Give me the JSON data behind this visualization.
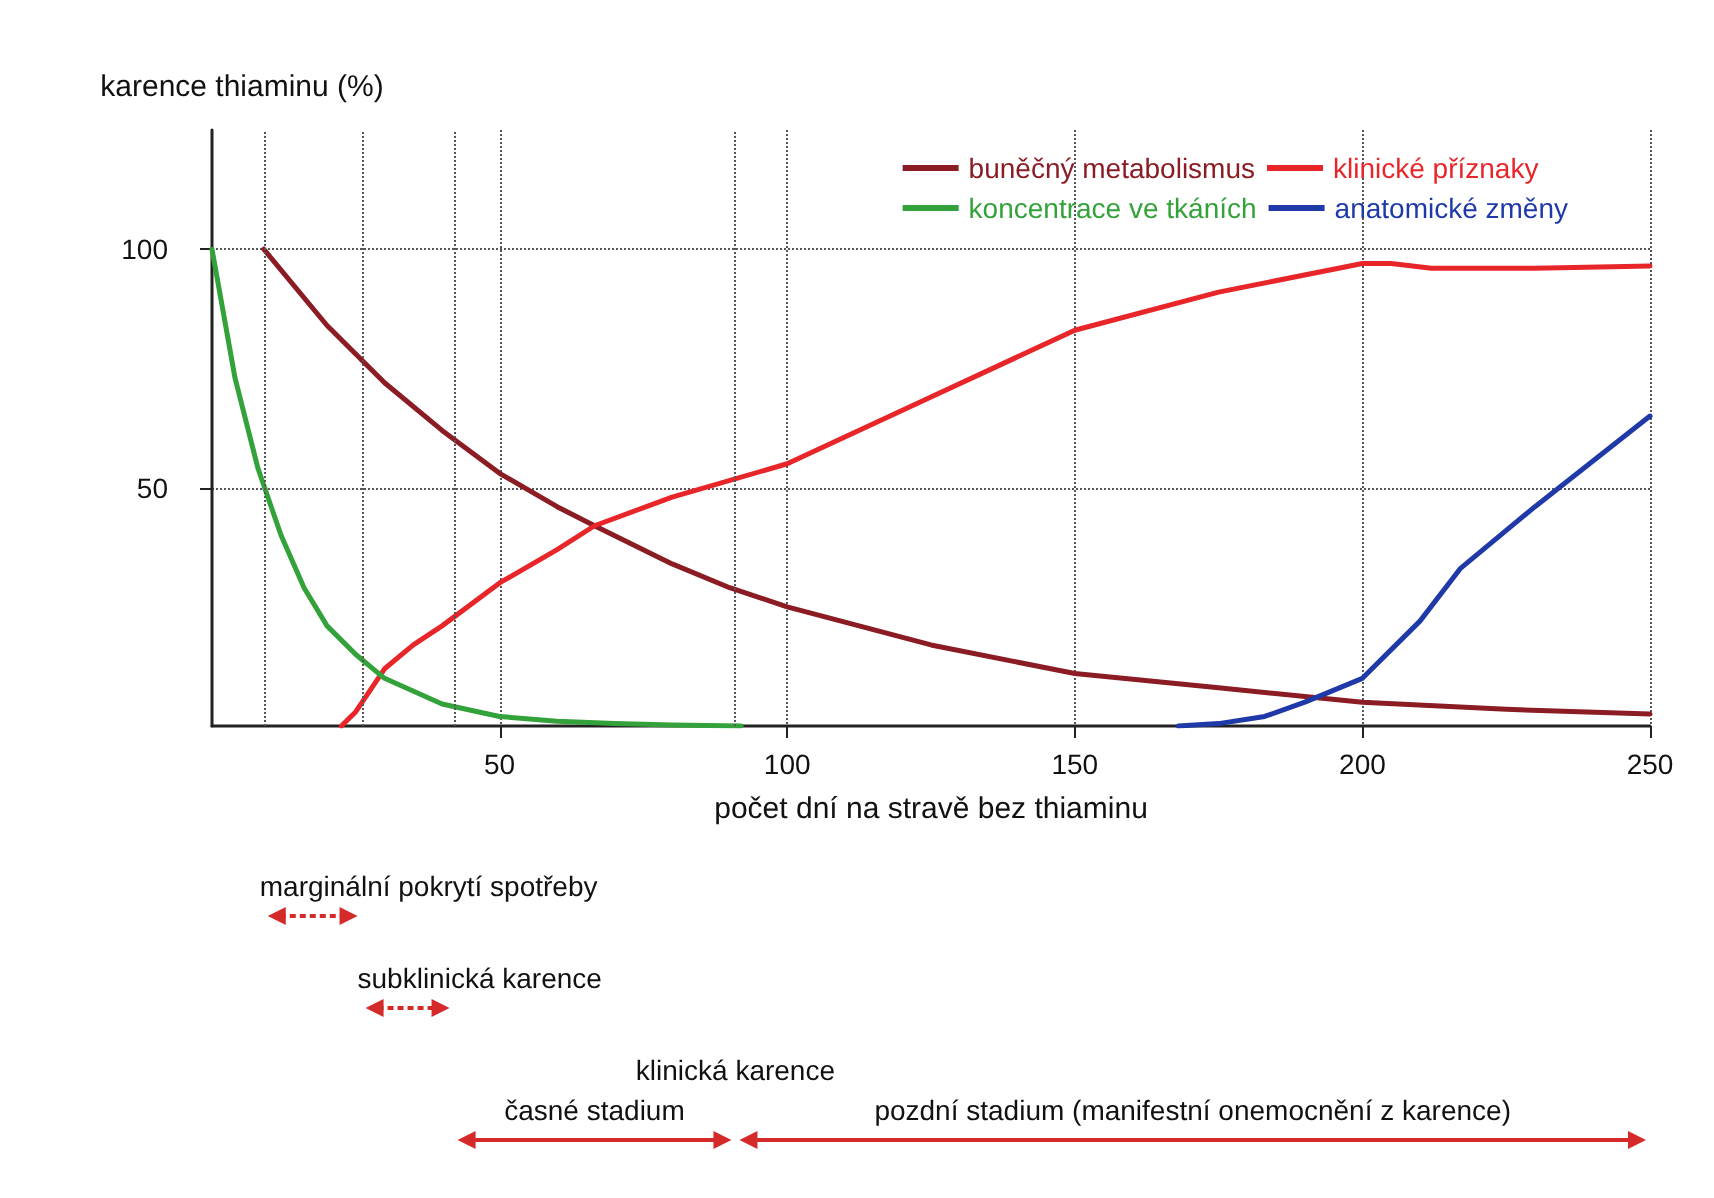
{
  "chart_data": {
    "type": "line",
    "xlabel": "počet dní na stravě bez thiaminu",
    "ylabel": "karence thiaminu (%)",
    "xlim": [
      0,
      250
    ],
    "xticks": [
      50,
      100,
      150,
      200,
      250
    ],
    "ylim": [
      0,
      125
    ],
    "yticks": [
      50,
      100
    ],
    "grid": true,
    "legend": "top right",
    "series": [
      {
        "name": "buněčný metabolismus",
        "color": "#8b1c24",
        "x": [
          9,
          20,
          30,
          40,
          50,
          60,
          66.5,
          80,
          90,
          100,
          125,
          150,
          175,
          200,
          225,
          250
        ],
        "values": [
          100,
          84,
          72,
          62,
          53,
          46,
          42,
          34,
          29,
          25,
          17,
          11,
          8,
          5,
          3.5,
          2.5
        ]
      },
      {
        "name": "klinické příznaky",
        "color": "#e8262a",
        "x": [
          22.5,
          25,
          30,
          35,
          40,
          50,
          60,
          66.5,
          80,
          100,
          125,
          150,
          175,
          200,
          205,
          212,
          230,
          250
        ],
        "values": [
          0,
          3,
          12,
          17,
          21,
          30,
          37,
          42,
          48,
          55,
          69,
          83,
          91,
          97,
          97,
          96,
          96,
          96.5
        ]
      },
      {
        "name": "koncentrace ve tkáních",
        "color": "#33a23a",
        "x": [
          0,
          4,
          8,
          12,
          16,
          20,
          25,
          30,
          40,
          50,
          60,
          70,
          80,
          92
        ],
        "values": [
          100,
          73,
          54,
          40,
          29,
          21,
          15,
          10,
          4.6,
          2,
          1,
          0.5,
          0.2,
          0
        ]
      },
      {
        "name": "anatomické změny",
        "color": "#1f3aa8",
        "x": [
          168,
          175,
          183,
          190,
          200,
          210,
          217,
          230,
          250
        ],
        "values": [
          0,
          0.5,
          2,
          5,
          10,
          22,
          33,
          46,
          65
        ]
      }
    ],
    "ref_lines": [
      {
        "axis": "x",
        "value": 9,
        "line_style": "dotted",
        "color": "#555555"
      },
      {
        "axis": "x",
        "value": 26,
        "line_style": "dotted",
        "color": "#555555"
      },
      {
        "axis": "x",
        "value": 42,
        "line_style": "dotted",
        "color": "#555555"
      },
      {
        "axis": "x",
        "value": 91,
        "line_style": "dotted",
        "color": "#555555"
      }
    ],
    "annotations": [
      "marginální pokrytí spotřeby",
      "subklinická karence",
      "časné stadium",
      "pozdní stadium (manifestní onemocnění z karence)",
      "klinická karence"
    ]
  }
}
